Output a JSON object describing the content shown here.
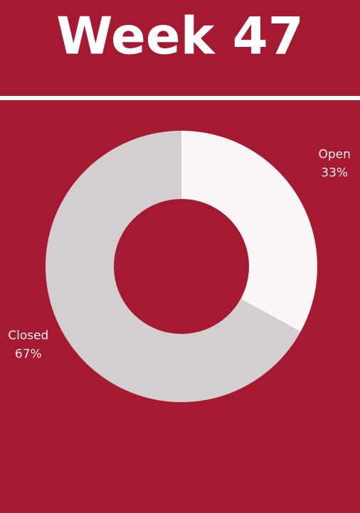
{
  "chart_data": {
    "type": "donut",
    "title": "Week 47",
    "categories": [
      "Open",
      "Closed"
    ],
    "values": [
      33,
      67
    ],
    "value_labels": [
      "33%",
      "67%"
    ],
    "colors": [
      "#faf6f8",
      "#d3cfd0"
    ]
  }
}
